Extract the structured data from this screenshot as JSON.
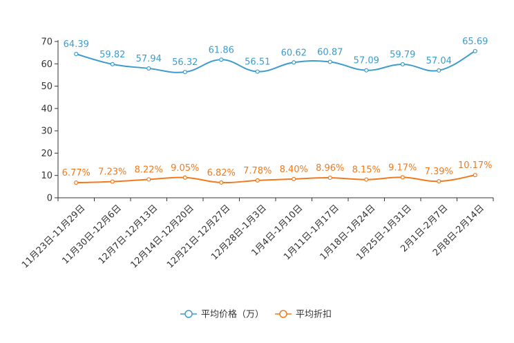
{
  "chart_data": {
    "type": "line",
    "categories": [
      "11月23日-11月29日",
      "11月30日-12月6日",
      "12月7日-12月13日",
      "12月14日-12月20日",
      "12月21日-12月27日",
      "12月28日-1月3日",
      "1月4日-1月10日",
      "1月11日-1月17日",
      "1月18日-1月24日",
      "1月25日-1月31日",
      "2月1日-2月7日",
      "2月8日-2月14日"
    ],
    "ylim": [
      0,
      70
    ],
    "yticks": [
      0,
      10,
      20,
      30,
      40,
      50,
      60,
      70
    ],
    "series": [
      {
        "name": "平均价格（万）",
        "color": "#3c9ccc",
        "values": [
          64.39,
          59.82,
          57.94,
          56.32,
          61.86,
          56.51,
          60.62,
          60.87,
          57.09,
          59.79,
          57.04,
          65.69
        ],
        "labels": [
          "64.39",
          "59.82",
          "57.94",
          "56.32",
          "61.86",
          "56.51",
          "60.62",
          "60.87",
          "57.09",
          "59.79",
          "57.04",
          "65.69"
        ]
      },
      {
        "name": "平均折扣",
        "color": "#f07a1e",
        "values": [
          6.77,
          7.23,
          8.22,
          9.05,
          6.82,
          7.78,
          8.4,
          8.96,
          8.15,
          9.17,
          7.39,
          10.17
        ],
        "labels": [
          "6.77%",
          "7.23%",
          "8.22%",
          "9.05%",
          "6.82%",
          "7.78%",
          "8.40%",
          "8.96%",
          "8.15%",
          "9.17%",
          "7.39%",
          "10.17%"
        ]
      }
    ],
    "legend": "bottom-center",
    "grid": false
  }
}
